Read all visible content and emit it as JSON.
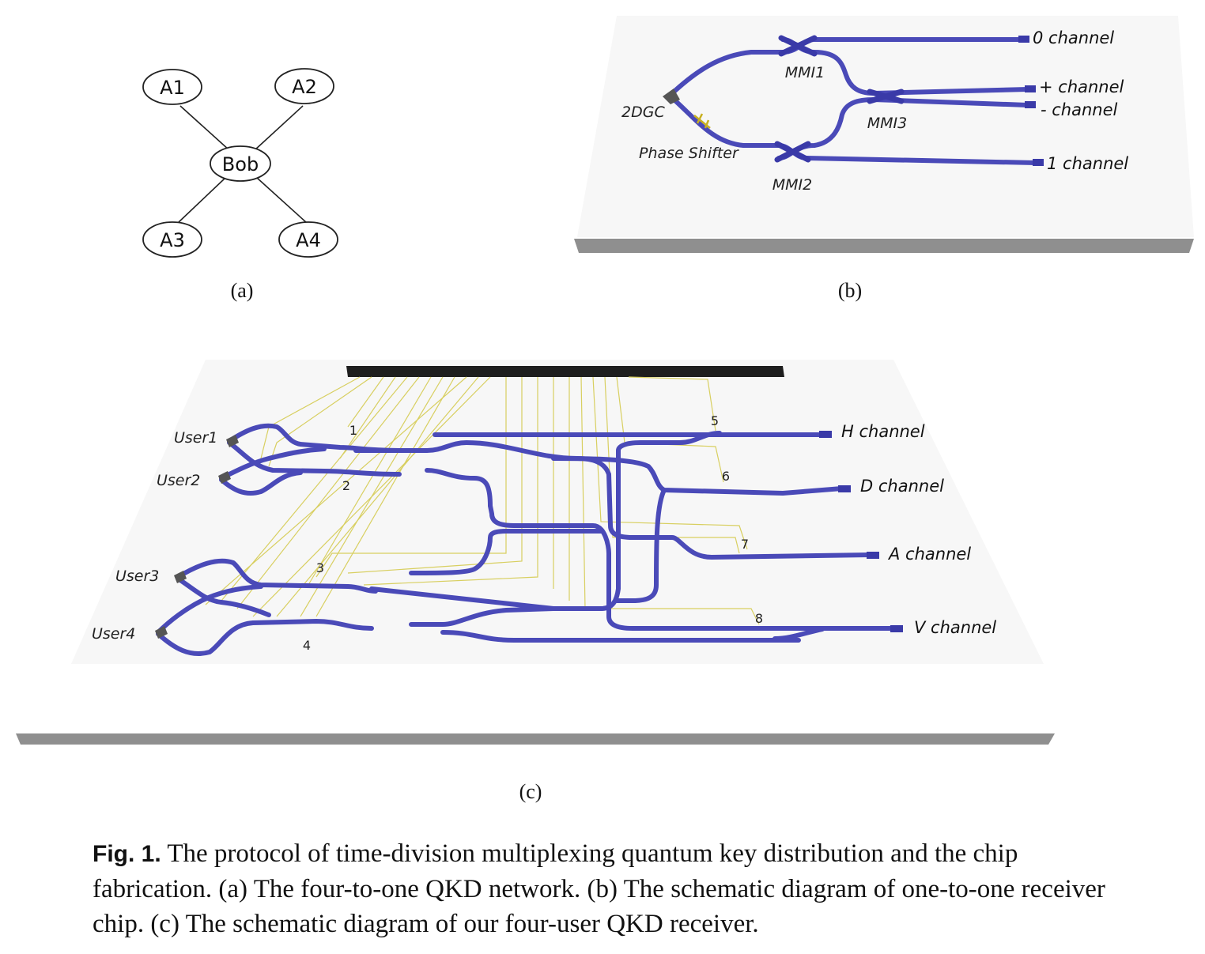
{
  "panel_a": {
    "nodes": [
      "A1",
      "A2",
      "Bob",
      "A3",
      "A4"
    ],
    "label": "(a)"
  },
  "panel_b": {
    "labels": {
      "mmi1": "MMI1",
      "mmi2": "MMI2",
      "mmi3": "MMI3",
      "gc": "2DGC",
      "phase_shifter": "Phase Shifter"
    },
    "channels": [
      "0 channel",
      "+ channel",
      "- channel",
      "1 channel"
    ],
    "label": "(b)"
  },
  "panel_c": {
    "users": [
      "User1",
      "User2",
      "User3",
      "User4"
    ],
    "numbers": [
      "1",
      "2",
      "3",
      "4",
      "5",
      "6",
      "7",
      "8"
    ],
    "channels": [
      "H channel",
      "D channel",
      "A channel",
      "V channel"
    ],
    "label": "(c)"
  },
  "caption": {
    "tag": "Fig. 1.",
    "text": "The protocol of time-division multiplexing quantum key distribution and the chip fabrication. (a) The four-to-one QKD network. (b) The schematic diagram of one-to-one receiver chip. (c) The schematic diagram of our four-user QKD receiver."
  },
  "colors": {
    "waveguide": "#4a4ab8",
    "electrode": "#d8cf60",
    "substrate": "#8f8f8f",
    "pad": "#1e1e1e"
  }
}
